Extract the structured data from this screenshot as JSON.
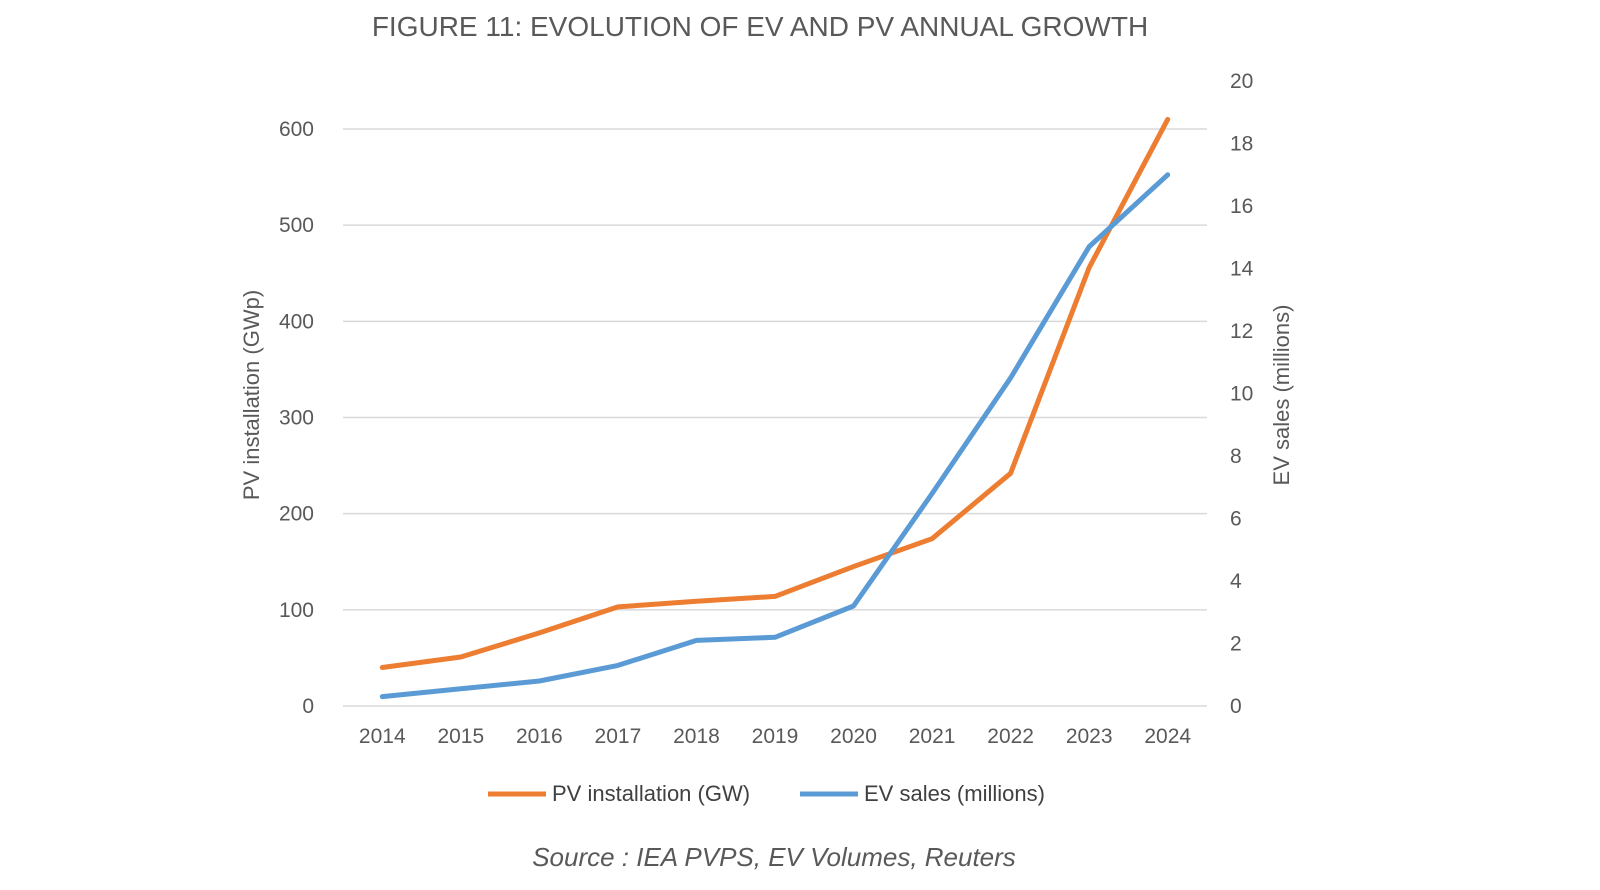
{
  "chart_data": {
    "type": "line",
    "title": "FIGURE 11: EVOLUTION OF EV AND PV ANNUAL GROWTH",
    "categories": [
      "2014",
      "2015",
      "2016",
      "2017",
      "2018",
      "2019",
      "2020",
      "2021",
      "2022",
      "2023",
      "2024"
    ],
    "y_left": {
      "label": "PV installation (GWp)",
      "ylim": [
        0,
        600
      ],
      "ticks": [
        "0",
        "100",
        "200",
        "300",
        "400",
        "500",
        "600"
      ],
      "tick_values": [
        0,
        100,
        200,
        300,
        400,
        500,
        600
      ]
    },
    "y_right": {
      "label": "EV sales (millions)",
      "ylim": [
        0,
        20
      ],
      "ticks": [
        "0",
        "2",
        "4",
        "6",
        "8",
        "10",
        "12",
        "14",
        "16",
        "18",
        "20"
      ],
      "tick_values": [
        0,
        2,
        4,
        6,
        8,
        10,
        12,
        14,
        16,
        18,
        20
      ]
    },
    "grid": true,
    "legend_position": "bottom",
    "series": [
      {
        "name": "PV installation (GW)",
        "axis": "left",
        "color": "#ED7D31",
        "values": [
          40,
          51,
          76,
          103,
          109,
          114,
          145,
          174,
          242,
          456,
          610
        ]
      },
      {
        "name": "EV sales (millions)",
        "axis": "right",
        "color": "#5B9BD5",
        "values": [
          0.3,
          0.55,
          0.8,
          1.3,
          2.1,
          2.2,
          3.2,
          6.8,
          10.5,
          14.7,
          17
        ]
      }
    ],
    "source": "Source : IEA PVPS, EV Volumes, Reuters"
  }
}
